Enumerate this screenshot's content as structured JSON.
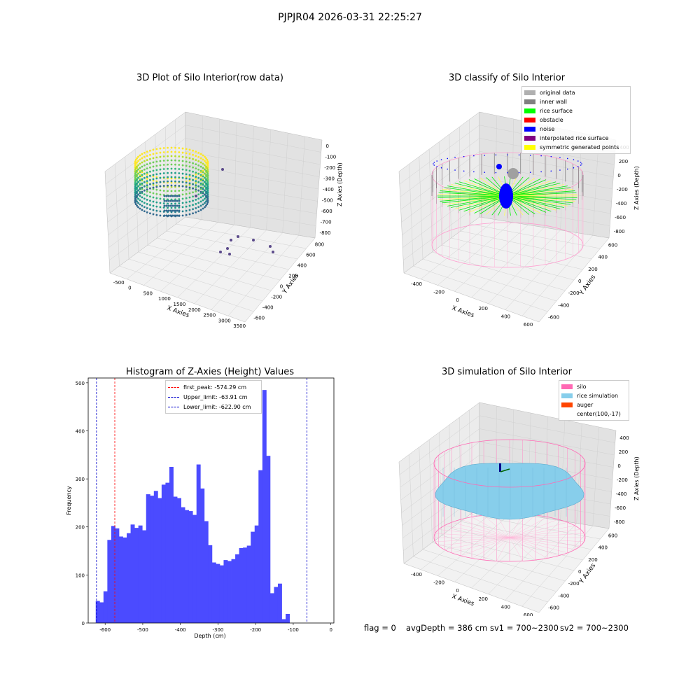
{
  "figure_title": "PJPJR04 2026-03-31 22:25:27",
  "panels": {
    "raw": {
      "title": "3D Plot of Silo Interior(row data)",
      "xlabel": "X Axies",
      "ylabel": "Y Axies",
      "zlabel": "Z Axies (Depth)",
      "x_ticks": [
        "-500",
        "0",
        "500",
        "1000",
        "1500",
        "2000",
        "2500",
        "3000",
        "3500"
      ],
      "y_ticks": [
        "800",
        "600",
        "400",
        "200",
        "0",
        "-200",
        "-400",
        "-600"
      ],
      "z_ticks": [
        "0",
        "-100",
        "-200",
        "-300",
        "-400",
        "-500",
        "-600",
        "-700",
        "-800"
      ]
    },
    "classify": {
      "title": "3D classify of Silo Interior",
      "xlabel": "X Axies",
      "ylabel": "Y Axies",
      "zlabel": "Z Axies (Depth)",
      "x_ticks": [
        "-400",
        "-200",
        "0",
        "200",
        "400",
        "600"
      ],
      "y_ticks": [
        "600",
        "400",
        "200",
        "0",
        "-200",
        "-400",
        "-600"
      ],
      "z_ticks": [
        "400",
        "200",
        "0",
        "-200",
        "-400",
        "-600",
        "-800"
      ],
      "legend": [
        {
          "label": "original data",
          "color": "#b0b0b0"
        },
        {
          "label": "inner wall",
          "color": "#808080"
        },
        {
          "label": "rice surface",
          "color": "#00ff00"
        },
        {
          "label": "obstacle",
          "color": "#ff0000"
        },
        {
          "label": "noise",
          "color": "#0000ff"
        },
        {
          "label": "interpolated rice surface",
          "color": "#800080"
        },
        {
          "label": "symmetric generated points",
          "color": "#ffff00"
        }
      ]
    },
    "simulation": {
      "title": "3D simulation of Silo Interior",
      "xlabel": "X Axies",
      "ylabel": "Y Axies",
      "zlabel": "Z Axies (Depth)",
      "x_ticks": [
        "-400",
        "-200",
        "0",
        "200",
        "400",
        "600"
      ],
      "y_ticks": [
        "600",
        "400",
        "200",
        "0",
        "-200",
        "-400",
        "-600"
      ],
      "z_ticks": [
        "400",
        "200",
        "0",
        "-200",
        "-400",
        "-600",
        "-800"
      ],
      "legend": [
        {
          "label": "silo",
          "color": "#ff69b4"
        },
        {
          "label": "rice simulation",
          "color": "#87ceeb"
        },
        {
          "label": "auger",
          "color": "#ff4500"
        },
        {
          "label": "center(100,-17)",
          "color": ""
        }
      ]
    }
  },
  "footer": {
    "flag": "flag = 0",
    "avg_depth": "avgDepth = 386 cm",
    "sv1": "sv1 = 700~2300",
    "sv2": "sv2 = 700~2300"
  },
  "chart_data": {
    "type": "bar",
    "title": "Histogram of Z-Axies (Height) Values",
    "xlabel": "Depth (cm)",
    "ylabel": "Frequency",
    "xlim": [
      -645,
      8
    ],
    "ylim": [
      0,
      510
    ],
    "x_ticks": [
      -600,
      -500,
      -400,
      -300,
      -200,
      -100,
      0
    ],
    "y_ticks": [
      0,
      100,
      200,
      300,
      400,
      500
    ],
    "bin_start": -625,
    "bin_width": 10.3,
    "values": [
      46,
      43,
      66,
      173,
      202,
      197,
      180,
      178,
      187,
      205,
      198,
      203,
      193,
      268,
      265,
      275,
      260,
      288,
      292,
      325,
      263,
      260,
      241,
      235,
      233,
      225,
      330,
      280,
      212,
      162,
      126,
      123,
      120,
      131,
      129,
      133,
      143,
      156,
      157,
      161,
      190,
      203,
      318,
      485,
      348,
      62,
      75,
      82,
      8,
      19
    ],
    "color": "#4b4bff",
    "reference_lines": [
      {
        "name": "first_peak: -574.29 cm",
        "value": -574.29,
        "color": "#ff0000"
      },
      {
        "name": "Upper_limit: -63.91 cm",
        "value": -63.91,
        "color": "#0000cc"
      },
      {
        "name": "Lower_limit: -622.90 cm",
        "value": -622.9,
        "color": "#0000cc"
      }
    ],
    "legend_position": "top-center"
  }
}
